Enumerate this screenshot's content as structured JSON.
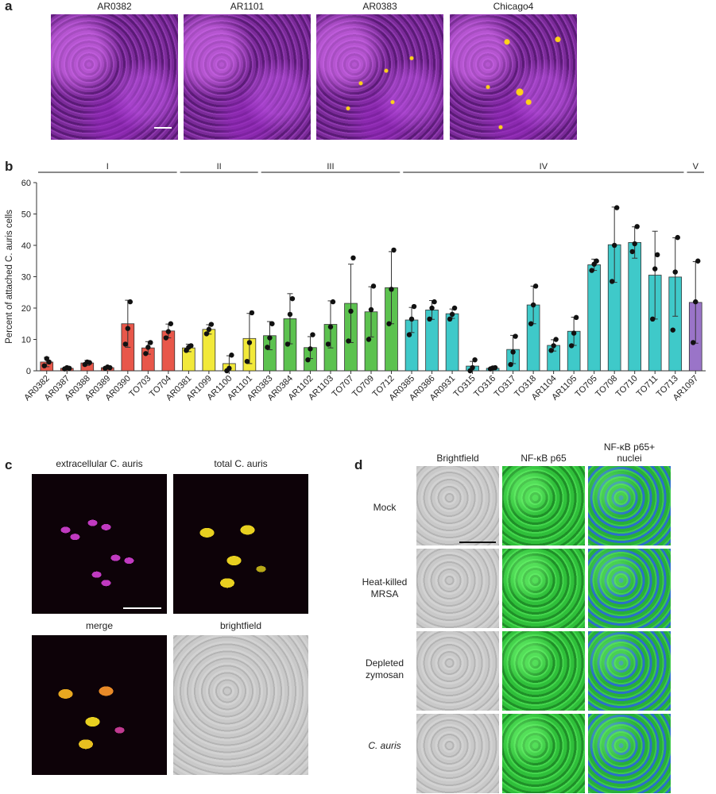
{
  "panel_a": {
    "label": "a",
    "images": [
      {
        "title": "AR0382"
      },
      {
        "title": "AR1101"
      },
      {
        "title": "AR0383"
      },
      {
        "title": "Chicago4"
      }
    ]
  },
  "panel_b": {
    "label": "b",
    "clade_labels": [
      "I",
      "II",
      "III",
      "IV",
      "V"
    ]
  },
  "panel_c": {
    "label": "c",
    "titles": [
      "extracellular C. auris",
      "total C. auris",
      "merge",
      "brightfield"
    ]
  },
  "panel_d": {
    "label": "d",
    "column_titles": [
      "Brightfield",
      "NF-κB p65",
      "NF-κB p65+\nnuclei"
    ],
    "row_labels": [
      "Mock",
      "Heat-killed\nMRSA",
      "Depleted\nzymosan",
      "C. auris"
    ]
  },
  "chart_data": {
    "type": "bar",
    "ylabel": "Percent of attached C. auris cells",
    "ylim": [
      0,
      60
    ],
    "yticks": [
      0,
      10,
      20,
      30,
      40,
      50,
      60
    ],
    "categories": [
      "AR0382",
      "AR0387",
      "AR0388",
      "AR0389",
      "AR0390",
      "TO703",
      "TO704",
      "AR0381",
      "AR1099",
      "AR1100",
      "AR1101",
      "AR0383",
      "AR0384",
      "AR1102",
      "AR1103",
      "TO707",
      "TO709",
      "TO712",
      "AR0385",
      "AR0386",
      "AR0931",
      "TO315",
      "TO316",
      "TO317",
      "TO318",
      "AR1104",
      "AR1105",
      "TO705",
      "TO708",
      "TO710",
      "TO711",
      "TO713",
      "AR1097"
    ],
    "clade_index": [
      0,
      0,
      0,
      0,
      0,
      0,
      0,
      1,
      1,
      1,
      1,
      2,
      2,
      2,
      2,
      2,
      2,
      2,
      3,
      3,
      3,
      3,
      3,
      3,
      3,
      3,
      3,
      3,
      3,
      3,
      3,
      3,
      4
    ],
    "clade_colors": [
      "#e8574a",
      "#f2e93a",
      "#5cc24f",
      "#3fc9c9",
      "#9a74c8"
    ],
    "values": [
      2.8,
      0.8,
      2.5,
      1.0,
      15,
      7.3,
      12.7,
      7.3,
      13.2,
      2.3,
      10.3,
      11.2,
      16.6,
      7.4,
      14.8,
      21.5,
      18.8,
      26.5,
      16.2,
      19.4,
      18.2,
      1.5,
      0.8,
      6.8,
      21,
      8.1,
      12.6,
      33.8,
      40.2,
      40.9,
      30.5,
      29.9,
      21.8
    ],
    "errors": [
      1.5,
      0.3,
      0.8,
      0.4,
      7.5,
      2.0,
      2.2,
      1.2,
      1.5,
      2.5,
      8.0,
      4.5,
      8.0,
      3.5,
      7.5,
      12.5,
      8.0,
      11.5,
      4.0,
      3.0,
      1.5,
      1.5,
      0.3,
      4.5,
      6.0,
      1.8,
      4.5,
      1.8,
      12.0,
      5.0,
      14.0,
      12.5,
      13.0
    ],
    "points": [
      [
        1.6,
        3.9,
        2.8
      ],
      [
        0.6,
        1.0,
        0.8
      ],
      [
        2.0,
        2.8,
        2.6
      ],
      [
        0.8,
        1.2,
        1.0
      ],
      [
        8.5,
        13.5,
        22.0
      ],
      [
        5.5,
        7.5,
        9.0
      ],
      [
        10.5,
        12.5,
        15.0
      ],
      [
        6.5,
        7.5,
        8.0
      ],
      [
        11.8,
        13.2,
        14.8
      ],
      [
        0.0,
        0.8,
        5.0
      ],
      [
        3.0,
        9.0,
        18.5
      ],
      [
        7.5,
        10.5,
        15.0
      ],
      [
        8.5,
        18.0,
        23.0
      ],
      [
        3.5,
        7.0,
        11.5
      ],
      [
        8.5,
        14.0,
        22.0
      ],
      [
        9.5,
        19.0,
        36.0
      ],
      [
        10.0,
        19.5,
        27.0
      ],
      [
        15.0,
        26.0,
        38.5
      ],
      [
        11.5,
        16.5,
        20.5
      ],
      [
        16.5,
        20.0,
        22.0
      ],
      [
        16.5,
        18.0,
        20.0
      ],
      [
        0.0,
        1.0,
        3.5
      ],
      [
        0.6,
        0.9,
        1.0
      ],
      [
        2.0,
        6.0,
        11.0
      ],
      [
        15.0,
        21.0,
        27.0
      ],
      [
        6.5,
        8.0,
        10.0
      ],
      [
        8.0,
        12.0,
        17.0
      ],
      [
        32.0,
        34.0,
        35.0
      ],
      [
        28.5,
        40.0,
        52.0
      ],
      [
        38.0,
        40.5,
        46.0
      ],
      [
        16.5,
        32.5,
        37.0
      ],
      [
        13.0,
        31.5,
        42.5
      ],
      [
        9.0,
        22.0,
        35.0
      ]
    ]
  }
}
